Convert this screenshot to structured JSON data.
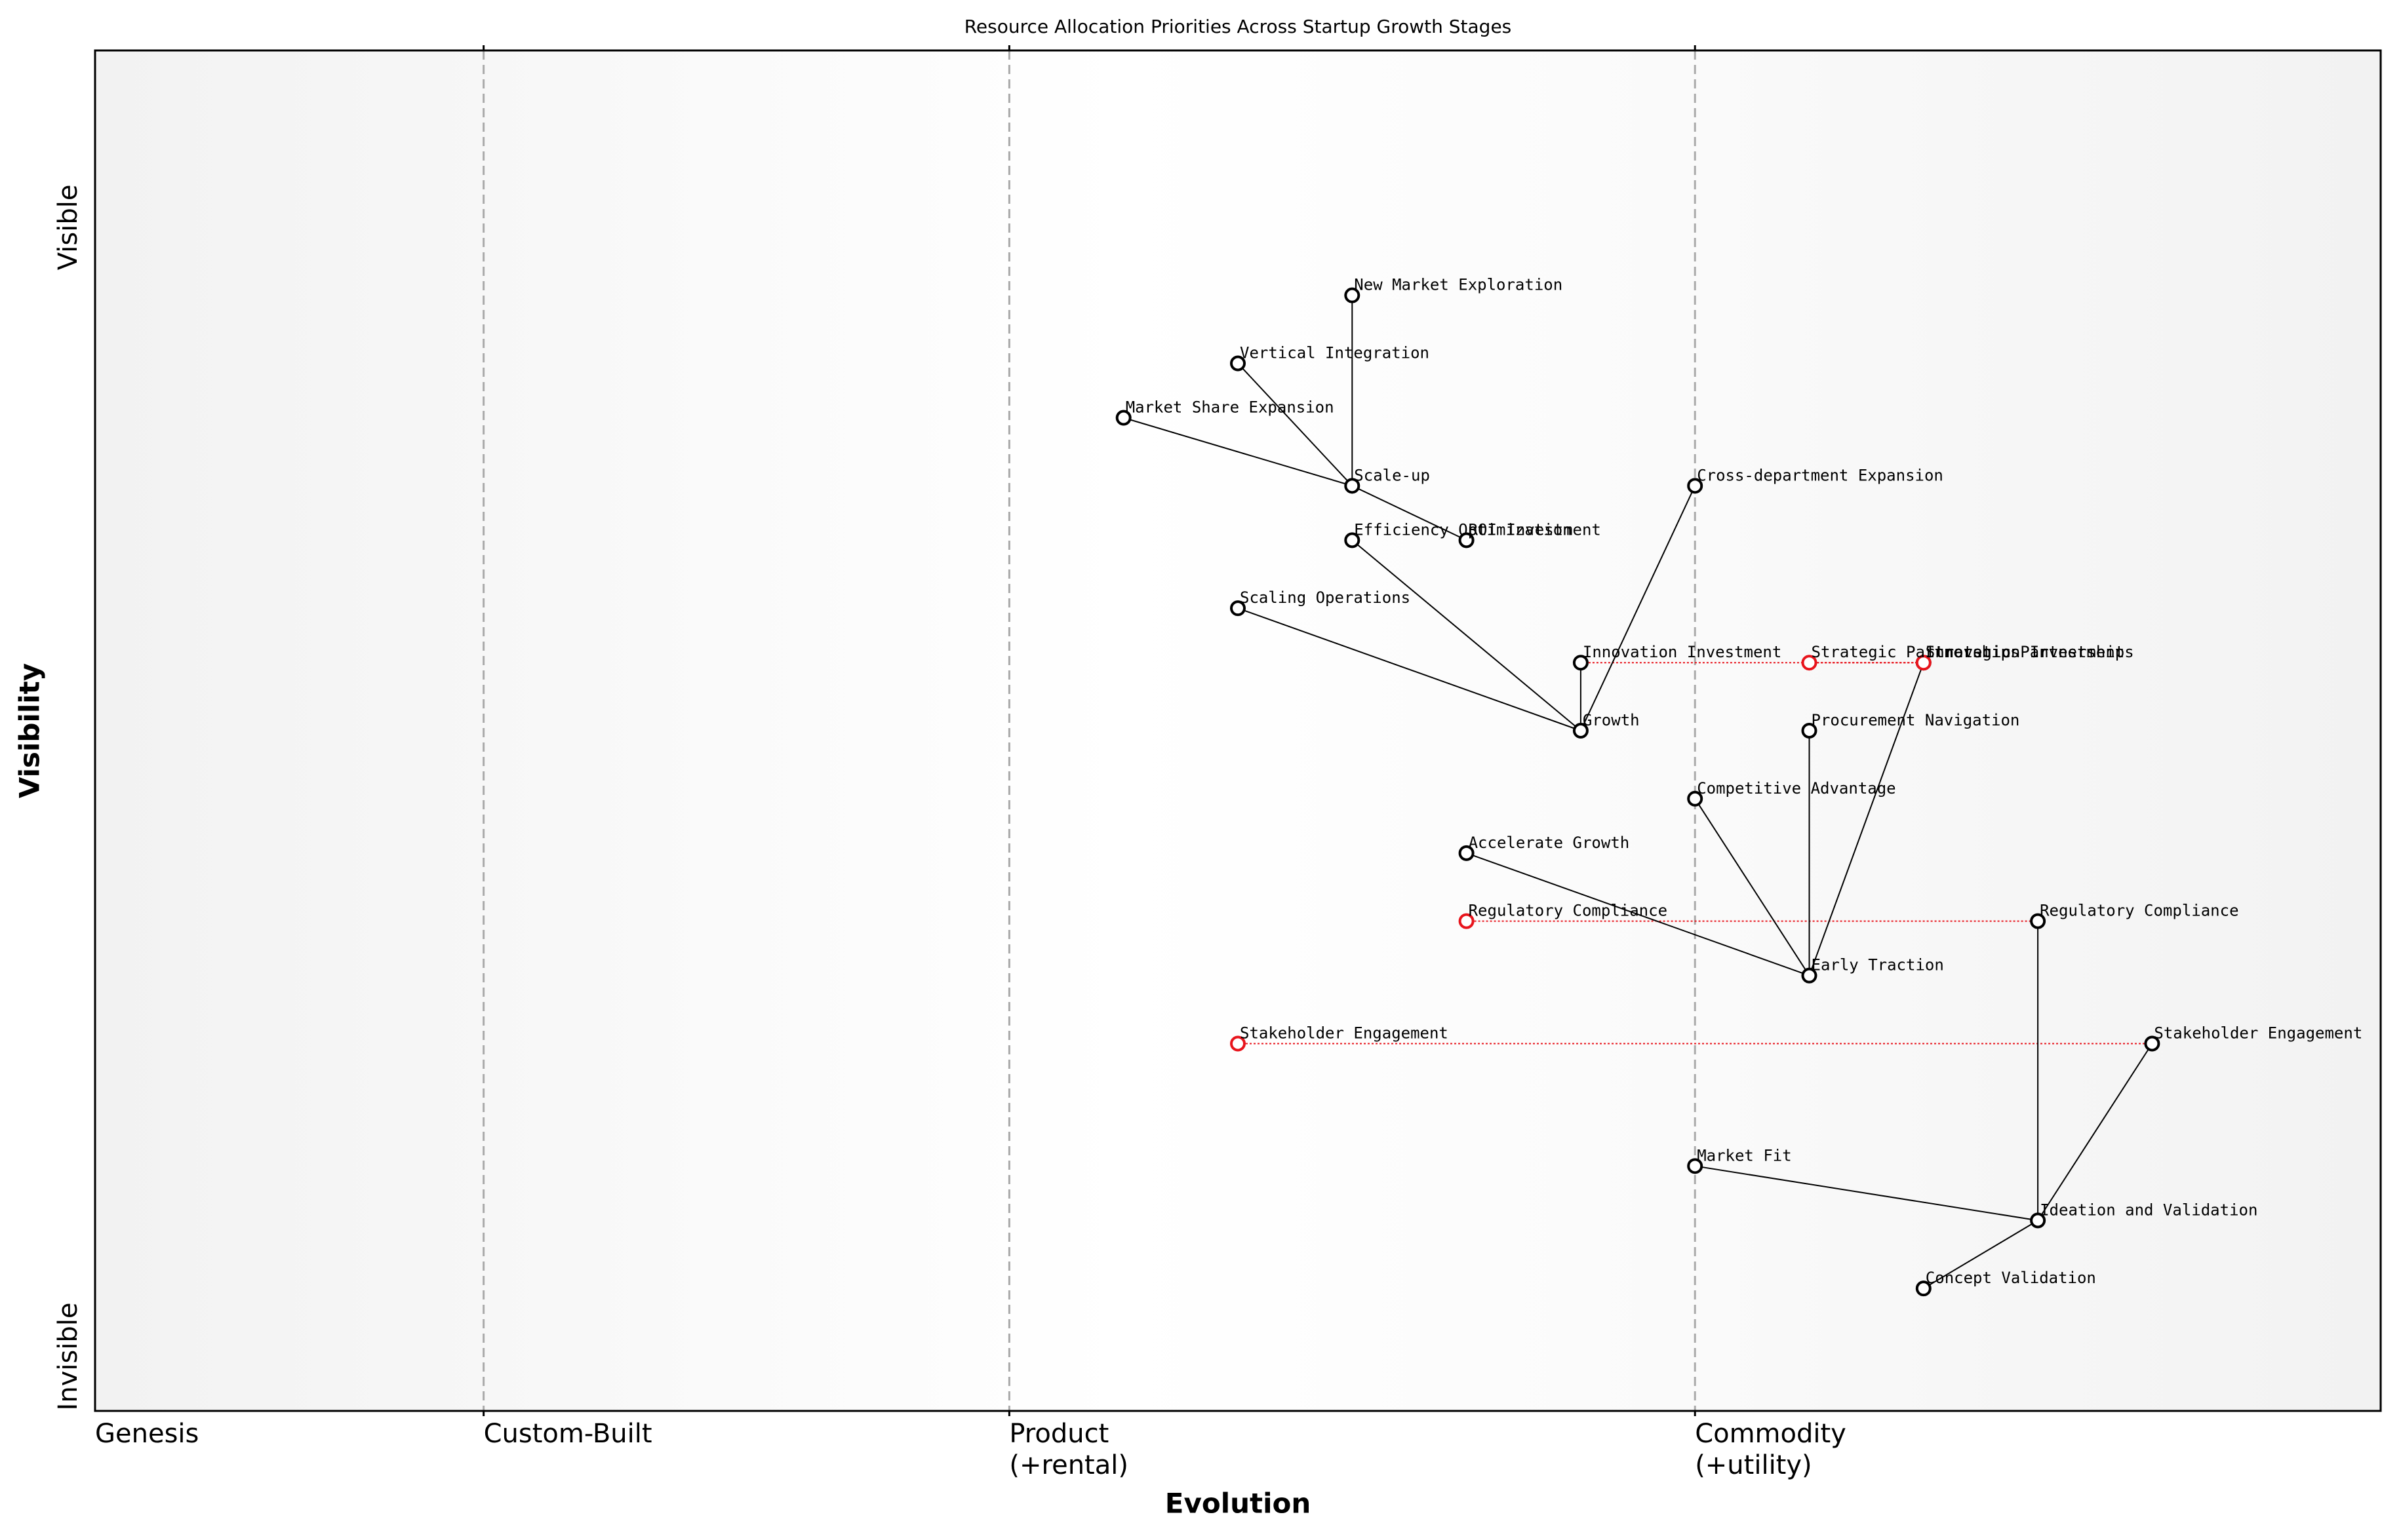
{
  "chart_data": {
    "type": "wardley",
    "title": "Resource Allocation Priorities Across Startup Growth Stages",
    "x_label": "Evolution",
    "y_label": "Visibility",
    "xlim": [
      0,
      1
    ],
    "ylim": [
      0,
      1
    ],
    "xticks": [
      {
        "value": 0,
        "label": "Genesis"
      },
      {
        "value": 0.17,
        "label": "Custom-Built"
      },
      {
        "value": 0.4,
        "label": "Product\n(+rental)"
      },
      {
        "value": 0.7,
        "label": "Commodity\n(+utility)"
      }
    ],
    "yticks": [
      {
        "value": 0.04,
        "label": "Invisible"
      },
      {
        "value": 0.87,
        "label": "Visible"
      }
    ],
    "components": [
      {
        "name": "New Market Exploration",
        "evolution": 0.55,
        "visibility": 0.82,
        "color": "#000000"
      },
      {
        "name": "Vertical Integration",
        "evolution": 0.5,
        "visibility": 0.77,
        "color": "#000000"
      },
      {
        "name": "Market Share Expansion",
        "evolution": 0.45,
        "visibility": 0.73,
        "color": "#000000"
      },
      {
        "name": "Scale-up",
        "evolution": 0.55,
        "visibility": 0.68,
        "color": "#000000"
      },
      {
        "name": "Efficiency Optimization",
        "evolution": 0.55,
        "visibility": 0.64,
        "color": "#000000"
      },
      {
        "name": "ROI Investment",
        "evolution": 0.6,
        "visibility": 0.64,
        "color": "#000000"
      },
      {
        "name": "Scaling Operations",
        "evolution": 0.5,
        "visibility": 0.59,
        "color": "#000000"
      },
      {
        "name": "Cross-department Expansion",
        "evolution": 0.7,
        "visibility": 0.68,
        "color": "#000000"
      },
      {
        "name": "Innovation Investment",
        "evolution": 0.65,
        "visibility": 0.55,
        "color": "#000000"
      },
      {
        "name": "Strategic Partnerships",
        "evolution": 0.75,
        "visibility": 0.55,
        "color": "#e8141c"
      },
      {
        "name": "Strategic Partnerships",
        "evolution": 0.8,
        "visibility": 0.55,
        "color": "#000000"
      },
      {
        "name": "Innovation Investment",
        "evolution": 0.8,
        "visibility": 0.55,
        "color": "#e8141c"
      },
      {
        "name": "Growth",
        "evolution": 0.65,
        "visibility": 0.5,
        "color": "#000000"
      },
      {
        "name": "Procurement Navigation",
        "evolution": 0.75,
        "visibility": 0.5,
        "color": "#000000"
      },
      {
        "name": "Competitive Advantage",
        "evolution": 0.7,
        "visibility": 0.45,
        "color": "#000000"
      },
      {
        "name": "Accelerate Growth",
        "evolution": 0.6,
        "visibility": 0.41,
        "color": "#000000"
      },
      {
        "name": "Regulatory Compliance",
        "evolution": 0.6,
        "visibility": 0.36,
        "color": "#e8141c"
      },
      {
        "name": "Regulatory Compliance",
        "evolution": 0.85,
        "visibility": 0.36,
        "color": "#000000"
      },
      {
        "name": "Early Traction",
        "evolution": 0.75,
        "visibility": 0.32,
        "color": "#000000"
      },
      {
        "name": "Stakeholder Engagement",
        "evolution": 0.5,
        "visibility": 0.27,
        "color": "#e8141c"
      },
      {
        "name": "Stakeholder Engagement",
        "evolution": 0.9,
        "visibility": 0.27,
        "color": "#000000"
      },
      {
        "name": "Market Fit",
        "evolution": 0.7,
        "visibility": 0.18,
        "color": "#000000"
      },
      {
        "name": "Ideation and Validation",
        "evolution": 0.85,
        "visibility": 0.14,
        "color": "#000000"
      },
      {
        "name": "Concept Validation",
        "evolution": 0.8,
        "visibility": 0.09,
        "color": "#000000"
      }
    ],
    "links": [
      [
        3,
        0
      ],
      [
        3,
        1
      ],
      [
        3,
        2
      ],
      [
        3,
        5
      ],
      [
        12,
        4
      ],
      [
        12,
        6
      ],
      [
        12,
        8
      ],
      [
        12,
        7
      ],
      [
        18,
        14
      ],
      [
        18,
        13
      ],
      [
        18,
        10
      ],
      [
        18,
        15
      ],
      [
        22,
        17
      ],
      [
        22,
        20
      ],
      [
        22,
        21
      ],
      [
        22,
        23
      ]
    ],
    "evolutions": [
      [
        8,
        11
      ],
      [
        9,
        10
      ],
      [
        16,
        17
      ],
      [
        19,
        20
      ]
    ]
  }
}
